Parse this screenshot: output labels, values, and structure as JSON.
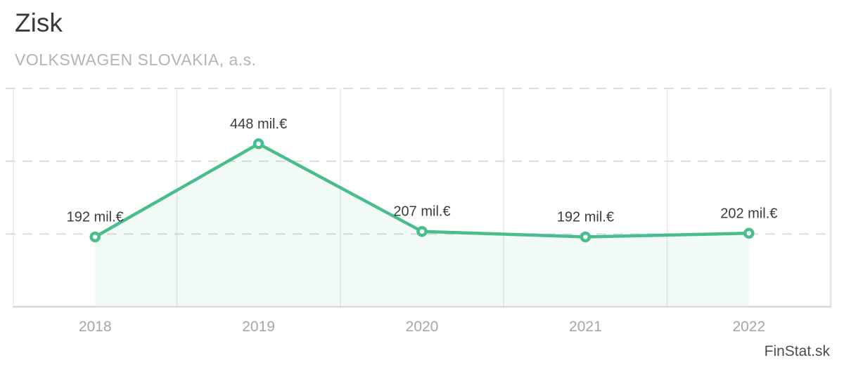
{
  "header": {
    "title": "Zisk",
    "company": "VOLKSWAGEN SLOVAKIA, a.s."
  },
  "chart_data": {
    "type": "line",
    "title": "Zisk",
    "subtitle": "VOLKSWAGEN SLOVAKIA, a.s.",
    "categories": [
      "2018",
      "2019",
      "2020",
      "2021",
      "2022"
    ],
    "values": [
      192,
      448,
      207,
      192,
      202
    ],
    "unit": "mil.€",
    "point_labels": [
      "192 mil.€",
      "448 mil.€",
      "207 mil.€",
      "192 mil.€",
      "202 mil.€"
    ],
    "xlabel": "",
    "ylabel": "",
    "ylim": [
      0,
      600
    ],
    "gridlines_horizontal_dashed_at": [
      200,
      400,
      600
    ],
    "vertical_column_borders": true,
    "legend": "none",
    "area_fill_between_first_and_last_point": true,
    "colors": {
      "line": "#47be8c",
      "marker_fill": "#ffffff",
      "area_fill": "#47be8c",
      "area_fill_opacity": 0.07,
      "grid_dashed": "#dcdcdc",
      "grid_vertical": "#e8e8e8",
      "plot_right_border": "#e2e6e9",
      "axis_bottom": "#d8d8d8",
      "value_label_text": "#3c3c3c",
      "axis_text": "#a6a6a6",
      "title_text": "#3a3a3a",
      "subtitle_text": "#b4b4b4"
    }
  },
  "footer": {
    "watermark": "FinStat.sk"
  }
}
